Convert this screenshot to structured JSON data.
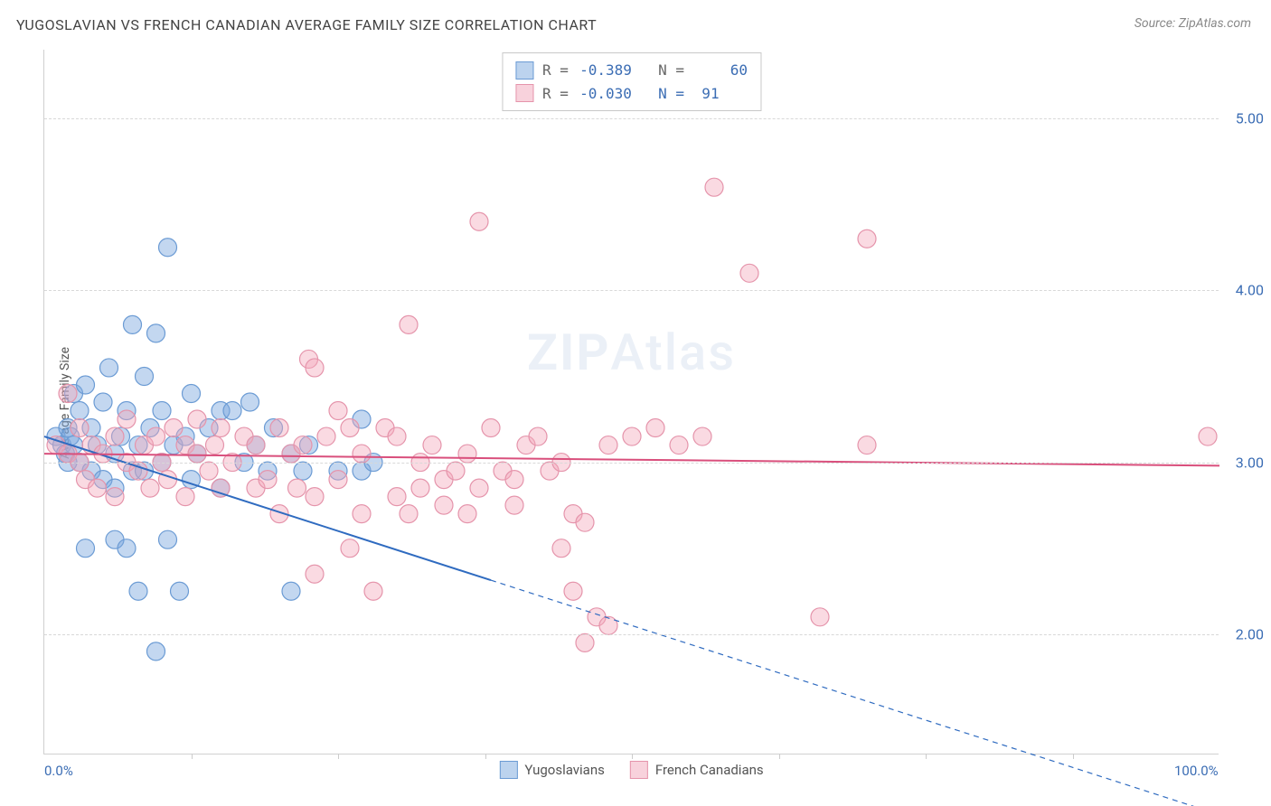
{
  "title": "YUGOSLAVIAN VS FRENCH CANADIAN AVERAGE FAMILY SIZE CORRELATION CHART",
  "source": "Source: ZipAtlas.com",
  "y_axis_label": "Average Family Size",
  "watermark": {
    "bold": "ZIP",
    "light": "Atlas"
  },
  "chart": {
    "type": "scatter",
    "background_color": "#ffffff",
    "grid_color": "#d8d8d8",
    "xlim": [
      0,
      100
    ],
    "ylim": [
      1.3,
      5.4
    ],
    "x_tick_labels": [
      {
        "pos": 0,
        "text": "0.0%"
      },
      {
        "pos": 100,
        "text": "100.0%"
      }
    ],
    "x_minor_ticks": [
      12.5,
      25,
      37.5,
      50,
      62.5,
      75,
      87.5
    ],
    "y_ticks": [
      2.0,
      3.0,
      4.0,
      5.0
    ],
    "marker_radius": 10,
    "series": [
      {
        "name": "Yugoslavians",
        "fill_color": "rgba(122,167,222,0.45)",
        "stroke_color": "#6b9bd4",
        "R": "-0.389",
        "N": "60",
        "trend": {
          "y_at_x0": 3.15,
          "y_at_x100": 0.95,
          "solid_until_x": 38,
          "color": "#2f6bc0",
          "width": 2
        },
        "points": [
          [
            1,
            3.15
          ],
          [
            1.5,
            3.1
          ],
          [
            1.8,
            3.05
          ],
          [
            2,
            3.0
          ],
          [
            2,
            3.2
          ],
          [
            2.2,
            3.15
          ],
          [
            2.5,
            3.4
          ],
          [
            2.5,
            3.1
          ],
          [
            3,
            3.0
          ],
          [
            3,
            3.3
          ],
          [
            3.5,
            2.5
          ],
          [
            3.5,
            3.45
          ],
          [
            4,
            3.2
          ],
          [
            4,
            2.95
          ],
          [
            4.5,
            3.1
          ],
          [
            5,
            3.35
          ],
          [
            5,
            2.9
          ],
          [
            5.5,
            3.55
          ],
          [
            6,
            3.05
          ],
          [
            6,
            2.85
          ],
          [
            6,
            2.55
          ],
          [
            6.5,
            3.15
          ],
          [
            7,
            2.5
          ],
          [
            7,
            3.3
          ],
          [
            7.5,
            2.95
          ],
          [
            7.5,
            3.8
          ],
          [
            8,
            3.1
          ],
          [
            8.5,
            3.5
          ],
          [
            8.5,
            2.95
          ],
          [
            8,
            2.25
          ],
          [
            9,
            3.2
          ],
          [
            9.5,
            1.9
          ],
          [
            9.5,
            3.75
          ],
          [
            10,
            3.0
          ],
          [
            10,
            3.3
          ],
          [
            10.5,
            4.25
          ],
          [
            10.5,
            2.55
          ],
          [
            11,
            3.1
          ],
          [
            11.5,
            2.25
          ],
          [
            12,
            3.15
          ],
          [
            12.5,
            3.4
          ],
          [
            12.5,
            2.9
          ],
          [
            13,
            3.05
          ],
          [
            14,
            3.2
          ],
          [
            15,
            3.3
          ],
          [
            15,
            2.85
          ],
          [
            16,
            3.3
          ],
          [
            17,
            3.0
          ],
          [
            17.5,
            3.35
          ],
          [
            18,
            3.1
          ],
          [
            19,
            2.95
          ],
          [
            19.5,
            3.2
          ],
          [
            21,
            2.25
          ],
          [
            21,
            3.05
          ],
          [
            22,
            2.95
          ],
          [
            22.5,
            3.1
          ],
          [
            25,
            2.95
          ],
          [
            27,
            2.95
          ],
          [
            28,
            3.0
          ],
          [
            27,
            3.25
          ]
        ]
      },
      {
        "name": "French Canadians",
        "fill_color": "rgba(242,166,186,0.42)",
        "stroke_color": "#e594ab",
        "R": "-0.030",
        "N": "91",
        "trend": {
          "y_at_x0": 3.05,
          "y_at_x100": 2.98,
          "solid_until_x": 100,
          "color": "#d94f7c",
          "width": 2
        },
        "points": [
          [
            1,
            3.1
          ],
          [
            2,
            3.05
          ],
          [
            2,
            3.4
          ],
          [
            3,
            3.0
          ],
          [
            3,
            3.2
          ],
          [
            3.5,
            2.9
          ],
          [
            4,
            3.1
          ],
          [
            4.5,
            2.85
          ],
          [
            5,
            3.05
          ],
          [
            6,
            3.15
          ],
          [
            6,
            2.8
          ],
          [
            7,
            3.0
          ],
          [
            7,
            3.25
          ],
          [
            8,
            2.95
          ],
          [
            8.5,
            3.1
          ],
          [
            9,
            2.85
          ],
          [
            9.5,
            3.15
          ],
          [
            10,
            3.0
          ],
          [
            10.5,
            2.9
          ],
          [
            11,
            3.2
          ],
          [
            12,
            3.1
          ],
          [
            12,
            2.8
          ],
          [
            13,
            3.05
          ],
          [
            13,
            3.25
          ],
          [
            14,
            2.95
          ],
          [
            14.5,
            3.1
          ],
          [
            15,
            2.85
          ],
          [
            15,
            3.2
          ],
          [
            16,
            3.0
          ],
          [
            17,
            3.15
          ],
          [
            18,
            2.85
          ],
          [
            18,
            3.1
          ],
          [
            19,
            2.9
          ],
          [
            20,
            3.2
          ],
          [
            20,
            2.7
          ],
          [
            21,
            3.05
          ],
          [
            21.5,
            2.85
          ],
          [
            22,
            3.1
          ],
          [
            22.5,
            3.6
          ],
          [
            23,
            3.55
          ],
          [
            23,
            2.8
          ],
          [
            23,
            2.35
          ],
          [
            24,
            3.15
          ],
          [
            25,
            2.9
          ],
          [
            25,
            3.3
          ],
          [
            26,
            3.2
          ],
          [
            26,
            2.5
          ],
          [
            27,
            2.7
          ],
          [
            27,
            3.05
          ],
          [
            28,
            2.25
          ],
          [
            29,
            3.2
          ],
          [
            30,
            3.15
          ],
          [
            30,
            2.8
          ],
          [
            31,
            2.7
          ],
          [
            31,
            3.8
          ],
          [
            32,
            3.0
          ],
          [
            32,
            2.85
          ],
          [
            33,
            3.1
          ],
          [
            34,
            2.9
          ],
          [
            34,
            2.75
          ],
          [
            35,
            2.95
          ],
          [
            36,
            3.05
          ],
          [
            36,
            2.7
          ],
          [
            37,
            2.85
          ],
          [
            37,
            4.4
          ],
          [
            38,
            3.2
          ],
          [
            39,
            2.95
          ],
          [
            40,
            2.9
          ],
          [
            40,
            2.75
          ],
          [
            41,
            3.1
          ],
          [
            42,
            3.15
          ],
          [
            43,
            2.95
          ],
          [
            44,
            3.0
          ],
          [
            44,
            2.5
          ],
          [
            45,
            2.7
          ],
          [
            45,
            2.25
          ],
          [
            46,
            2.65
          ],
          [
            46,
            1.95
          ],
          [
            47,
            2.1
          ],
          [
            48,
            2.05
          ],
          [
            48,
            3.1
          ],
          [
            50,
            3.15
          ],
          [
            52,
            3.2
          ],
          [
            54,
            3.1
          ],
          [
            56,
            3.15
          ],
          [
            57,
            4.6
          ],
          [
            60,
            4.1
          ],
          [
            66,
            2.1
          ],
          [
            70,
            4.3
          ],
          [
            70,
            3.1
          ],
          [
            99,
            3.15
          ]
        ]
      }
    ]
  }
}
